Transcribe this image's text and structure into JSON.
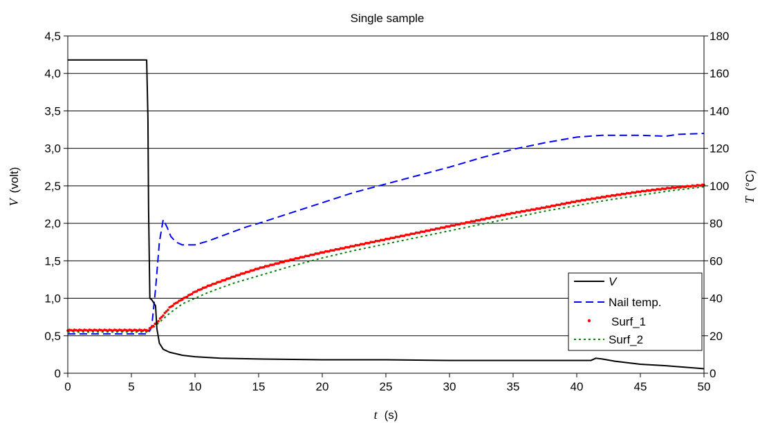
{
  "chart_data": {
    "type": "line",
    "title": "Single sample",
    "xlabel": {
      "symbol": "t",
      "unit": "(s)"
    },
    "ylabel_left": {
      "symbol": "V",
      "unit": "(volt)"
    },
    "ylabel_right": {
      "symbol": "T",
      "unit": "(°C)"
    },
    "xlim": [
      0,
      50
    ],
    "ylim_left": [
      0,
      4.5
    ],
    "ylim_right": [
      0,
      180
    ],
    "x_ticks": [
      "0",
      "5",
      "10",
      "15",
      "20",
      "25",
      "30",
      "35",
      "40",
      "45",
      "50"
    ],
    "y_left_ticks": [
      "0",
      "0,5",
      "1,0",
      "1,5",
      "2,0",
      "2,5",
      "3,0",
      "3,5",
      "4,0",
      "4,5"
    ],
    "y_right_ticks": [
      "0",
      "20",
      "40",
      "60",
      "80",
      "100",
      "120",
      "140",
      "160",
      "180"
    ],
    "grid": "horizontal",
    "legend_position": "bottom-right",
    "series": [
      {
        "name": "V",
        "axis": "left",
        "color": "#000000",
        "style": "solid",
        "x": [
          0,
          6.2,
          6.3,
          6.35,
          6.45,
          6.6,
          6.9,
          7.0,
          7.2,
          7.5,
          8,
          9,
          10,
          12,
          15,
          20,
          25,
          30,
          35,
          40,
          41.1,
          41.5,
          42,
          43,
          45,
          47,
          50
        ],
        "y": [
          4.18,
          4.18,
          3.4,
          2.2,
          1.0,
          0.98,
          0.9,
          0.6,
          0.4,
          0.32,
          0.28,
          0.24,
          0.22,
          0.2,
          0.19,
          0.18,
          0.18,
          0.17,
          0.17,
          0.17,
          0.17,
          0.2,
          0.19,
          0.16,
          0.12,
          0.1,
          0.06
        ]
      },
      {
        "name": "Nail temp.",
        "axis": "right",
        "color": "#0000ff",
        "style": "dashed",
        "x": [
          0,
          6.3,
          6.6,
          6.9,
          7.2,
          7.5,
          7.8,
          8.1,
          8.5,
          9,
          10,
          11,
          12,
          13,
          14,
          15,
          17.5,
          20,
          22.5,
          25,
          27.5,
          30,
          32.5,
          35,
          37.5,
          40,
          42,
          45,
          47,
          48,
          50
        ],
        "y": [
          21,
          21,
          25,
          45,
          70,
          82,
          78,
          73,
          70,
          68.5,
          68.5,
          70.5,
          73,
          75.5,
          78,
          80,
          85.5,
          91,
          96.5,
          101,
          105.5,
          110,
          115,
          119.5,
          123,
          126,
          127,
          127,
          126.5,
          127.5,
          128
        ]
      },
      {
        "name": "Surf_1",
        "axis": "right",
        "color": "#ff0000",
        "style": "dotted-markers",
        "x": [
          0,
          6.3,
          7,
          7.5,
          8,
          8.5,
          9,
          10,
          11,
          12,
          13,
          14,
          15,
          17.5,
          20,
          22.5,
          25,
          27.5,
          30,
          32.5,
          35,
          37.5,
          40,
          42.5,
          45,
          47.5,
          50
        ],
        "y": [
          23,
          23,
          27,
          31,
          35,
          37.5,
          39.5,
          43.5,
          46.5,
          49,
          51.5,
          53.8,
          56,
          60.5,
          64.5,
          68,
          71.5,
          75,
          78.5,
          82,
          85.5,
          88.5,
          91.8,
          94.5,
          97,
          99,
          100.5
        ]
      },
      {
        "name": "Surf_2",
        "axis": "right",
        "color": "#008000",
        "style": "dotted",
        "x": [
          0,
          6.3,
          7,
          7.5,
          8,
          8.5,
          9,
          10,
          11,
          12,
          13,
          14,
          15,
          17.5,
          20,
          22.5,
          25,
          27.5,
          30,
          32.5,
          35,
          37.5,
          40,
          42.5,
          45,
          47.5,
          50
        ],
        "y": [
          22,
          22,
          26,
          29,
          32,
          34.5,
          37,
          40,
          43,
          45.5,
          48,
          50,
          52,
          57,
          61.5,
          65.5,
          69,
          72.5,
          76,
          79.5,
          83,
          86.5,
          89.5,
          92.5,
          95,
          97.5,
          99.5
        ]
      }
    ]
  }
}
